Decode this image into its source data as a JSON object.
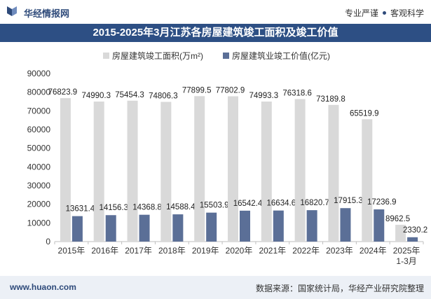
{
  "header": {
    "brand": "华经情报网",
    "slogan_left": "专业严谨",
    "slogan_right": "客观科学"
  },
  "footer": {
    "site": "www.huaon.com",
    "source": "数据来源：国家统计局，华经产业研究院整理"
  },
  "colors": {
    "series1": "#d9d9d9",
    "series2": "#5b6f97",
    "title_bg": "#2d4f84",
    "brand": "#2e4a7a"
  },
  "chart_data": {
    "type": "bar",
    "title": "2015-2025年3月江苏各房屋建筑竣工面积及竣工价值",
    "categories": [
      "2015年",
      "2016年",
      "2017年",
      "2018年",
      "2019年",
      "2020年",
      "2021年",
      "2022年",
      "2023年",
      "2024年",
      "2025年\n1-3月"
    ],
    "series": [
      {
        "name": "房屋建筑竣工面积(万m²)",
        "values": [
          76823.9,
          74990.3,
          75454.3,
          74806.3,
          77899.5,
          77802.9,
          74993.3,
          76318.6,
          73189.8,
          65519.9,
          8962.5
        ]
      },
      {
        "name": "房屋建筑业竣工价值(亿元)",
        "values": [
          13631.4,
          14156.3,
          14368.8,
          14588.4,
          15503.9,
          16542.4,
          16634.6,
          16820.7,
          17915.3,
          17236.9,
          2330.2
        ]
      }
    ],
    "ylim": [
      0,
      90000
    ],
    "yticks": [
      0,
      10000,
      20000,
      30000,
      40000,
      50000,
      60000,
      70000,
      80000,
      90000
    ],
    "legend_position": "top-center",
    "grid": false
  }
}
